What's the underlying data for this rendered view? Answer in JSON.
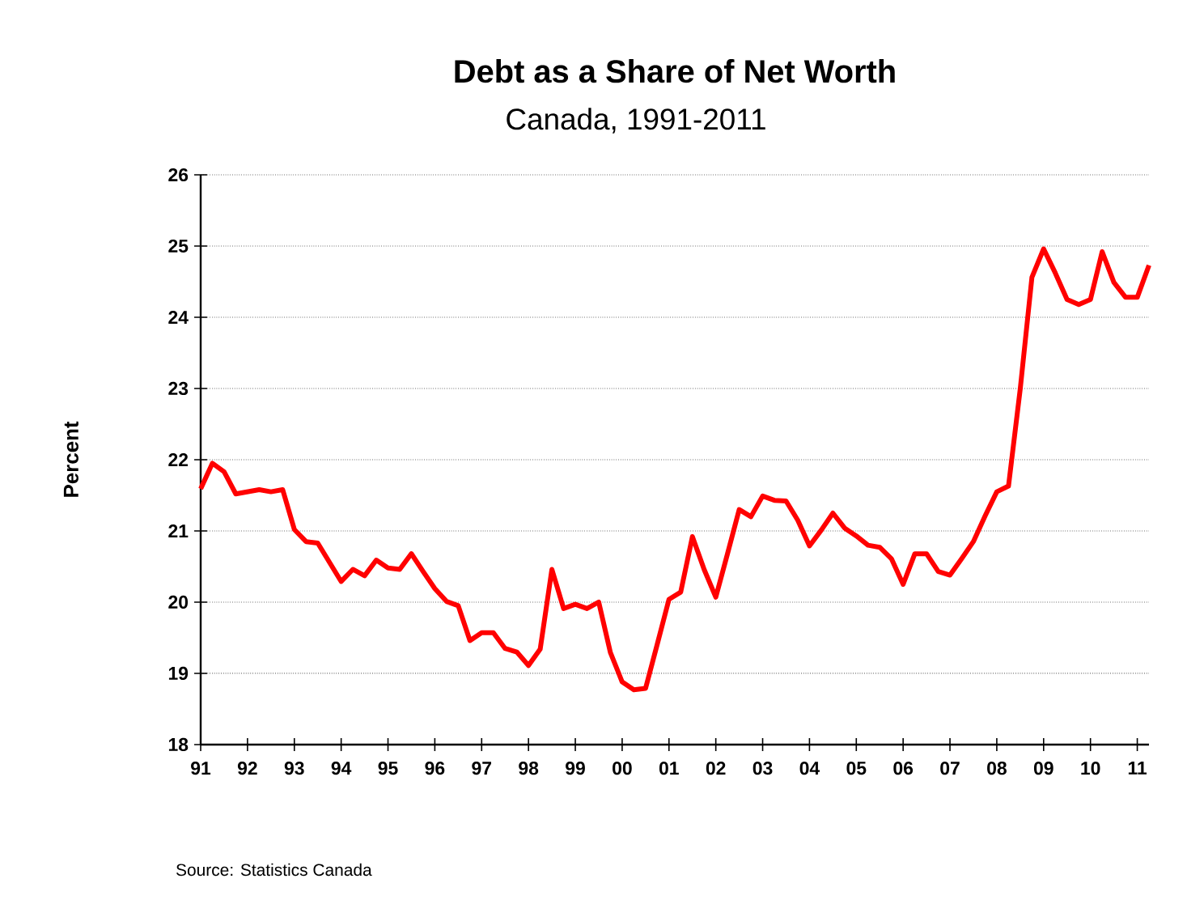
{
  "chart_data": {
    "type": "line",
    "title": "Debt as a Share of Net Worth",
    "subtitle": "Canada, 1991-2011",
    "ylabel": "Percent",
    "annotations": [
      "Source:  Statistics Canada"
    ],
    "x": [
      1991.0,
      1991.25,
      1991.5,
      1991.75,
      1992.0,
      1992.25,
      1992.5,
      1992.75,
      1993.0,
      1993.25,
      1993.5,
      1993.75,
      1994.0,
      1994.25,
      1994.5,
      1994.75,
      1995.0,
      1995.25,
      1995.5,
      1995.75,
      1996.0,
      1996.25,
      1996.5,
      1996.75,
      1997.0,
      1997.25,
      1997.5,
      1997.75,
      1998.0,
      1998.25,
      1998.5,
      1998.75,
      1999.0,
      1999.25,
      1999.5,
      1999.75,
      2000.0,
      2000.25,
      2000.5,
      2000.75,
      2001.0,
      2001.25,
      2001.5,
      2001.75,
      2002.0,
      2002.25,
      2002.5,
      2002.75,
      2003.0,
      2003.25,
      2003.5,
      2003.75,
      2004.0,
      2004.25,
      2004.5,
      2004.75,
      2005.0,
      2005.25,
      2005.5,
      2005.75,
      2006.0,
      2006.25,
      2006.5,
      2006.75,
      2007.0,
      2007.25,
      2007.5,
      2007.75,
      2008.0,
      2008.25,
      2008.5,
      2008.75,
      2009.0,
      2009.25,
      2009.5,
      2009.75,
      2010.0,
      2010.25,
      2010.5,
      2010.75,
      2011.0,
      2011.25
    ],
    "series": [
      {
        "color": "#ff0000",
        "values": [
          21.59,
          21.95,
          21.83,
          21.52,
          21.55,
          21.58,
          21.55,
          21.58,
          21.02,
          20.85,
          20.83,
          20.56,
          20.29,
          20.46,
          20.37,
          20.59,
          20.48,
          20.46,
          20.68,
          20.43,
          20.19,
          20.01,
          19.95,
          19.46,
          19.57,
          19.57,
          19.35,
          19.3,
          19.11,
          19.34,
          20.46,
          19.91,
          19.97,
          19.91,
          20.0,
          19.29,
          18.88,
          18.77,
          18.79,
          19.41,
          20.04,
          20.14,
          20.92,
          20.46,
          20.07,
          20.68,
          21.3,
          21.2,
          21.49,
          21.43,
          21.42,
          21.15,
          20.79,
          21.01,
          21.25,
          21.04,
          20.93,
          20.8,
          20.77,
          20.61,
          20.25,
          20.68,
          20.68,
          20.43,
          20.38,
          20.61,
          20.85,
          21.21,
          21.55,
          21.63,
          22.99,
          24.56,
          24.96,
          24.62,
          24.25,
          24.18,
          24.25,
          24.92,
          24.49,
          24.28,
          24.28,
          24.73
        ]
      }
    ],
    "xlim": [
      1991,
      2011.25
    ],
    "xticks": [
      {
        "value": 1991,
        "label": "91"
      },
      {
        "value": 1992,
        "label": "92"
      },
      {
        "value": 1993,
        "label": "93"
      },
      {
        "value": 1994,
        "label": "94"
      },
      {
        "value": 1995,
        "label": "95"
      },
      {
        "value": 1996,
        "label": "96"
      },
      {
        "value": 1997,
        "label": "97"
      },
      {
        "value": 1998,
        "label": "98"
      },
      {
        "value": 1999,
        "label": "99"
      },
      {
        "value": 2000,
        "label": "00"
      },
      {
        "value": 2001,
        "label": "01"
      },
      {
        "value": 2002,
        "label": "02"
      },
      {
        "value": 2003,
        "label": "03"
      },
      {
        "value": 2004,
        "label": "04"
      },
      {
        "value": 2005,
        "label": "05"
      },
      {
        "value": 2006,
        "label": "06"
      },
      {
        "value": 2007,
        "label": "07"
      },
      {
        "value": 2008,
        "label": "08"
      },
      {
        "value": 2009,
        "label": "09"
      },
      {
        "value": 2010,
        "label": "10"
      },
      {
        "value": 2011,
        "label": "11"
      }
    ],
    "ylim": [
      18,
      26
    ],
    "yticks": [
      18,
      19,
      20,
      21,
      22,
      23,
      24,
      25,
      26
    ],
    "grid": "y",
    "marker": "none",
    "line_style": "solid"
  }
}
